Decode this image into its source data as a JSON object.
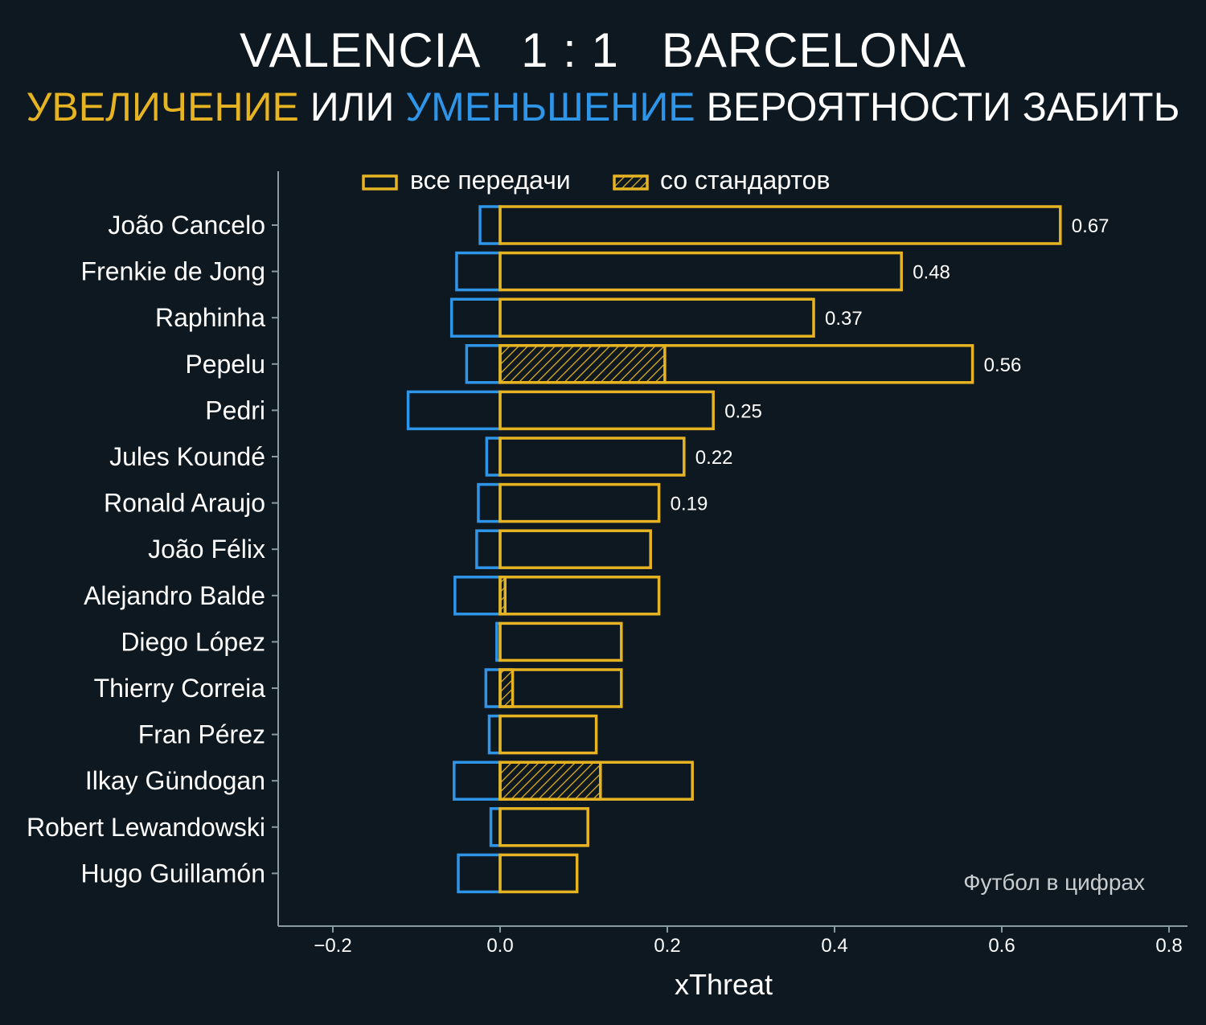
{
  "header": {
    "title": "VALENCIA   1 : 1   BARCELONA",
    "subtitle_part1": "УВЕЛИЧЕНИЕ",
    "subtitle_part2": " ИЛИ ",
    "subtitle_part3": "УМЕНЬШЕНИЕ",
    "subtitle_part4": " ВЕРОЯТНОСТИ ЗАБИТЬ"
  },
  "colors": {
    "background": "#0e1820",
    "positive": "#e6b422",
    "negative": "#2f95e8",
    "axis": "#8a9aa3",
    "text": "#ffffff",
    "watermark": "#c8cdd0"
  },
  "legend": {
    "all_passes": "все передачи",
    "set_pieces": "со стандартов",
    "placement": "top-center"
  },
  "watermark": "Футбол в цифрах",
  "chart_data": {
    "type": "bar",
    "orientation": "horizontal",
    "xlabel": "xThreat",
    "ylabel": "",
    "xlim": [
      -0.265,
      0.82
    ],
    "xticks": [
      -0.2,
      0.0,
      0.2,
      0.4,
      0.6,
      0.8
    ],
    "xtick_labels": [
      "−0.2",
      "0.0",
      "0.2",
      "0.4",
      "0.6",
      "0.8"
    ],
    "grid": false,
    "categories": [
      "João Cancelo",
      "Frenkie de Jong",
      "Raphinha",
      "Pepelu",
      "Pedri",
      "Jules Koundé",
      "Ronald Araujo",
      "João Félix",
      "Alejandro Balde",
      "Diego López",
      "Thierry Correia",
      "Fran Pérez",
      "Ilkay Gündogan",
      "Robert Lewandowski",
      "Hugo Guillamón"
    ],
    "series": [
      {
        "name": "все передачи",
        "values": [
          0.67,
          0.48,
          0.375,
          0.565,
          0.255,
          0.22,
          0.19,
          0.18,
          0.19,
          0.145,
          0.145,
          0.115,
          0.23,
          0.105,
          0.092
        ]
      },
      {
        "name": "со стандартов",
        "values": [
          0,
          0,
          0,
          0.197,
          0,
          0,
          0,
          0,
          0.006,
          0,
          0.015,
          0,
          0.12,
          0,
          0
        ]
      },
      {
        "values": [
          -0.024,
          -0.052,
          -0.058,
          -0.04,
          -0.11,
          -0.016,
          -0.026,
          -0.028,
          -0.054,
          -0.004,
          -0.017,
          -0.013,
          -0.055,
          -0.011,
          -0.05
        ]
      }
    ],
    "data_labels": [
      "0.67",
      "0.48",
      "0.37",
      "0.56",
      "0.25",
      "0.22",
      "0.19",
      "",
      "",
      "",
      "",
      "",
      "",
      "",
      ""
    ]
  }
}
